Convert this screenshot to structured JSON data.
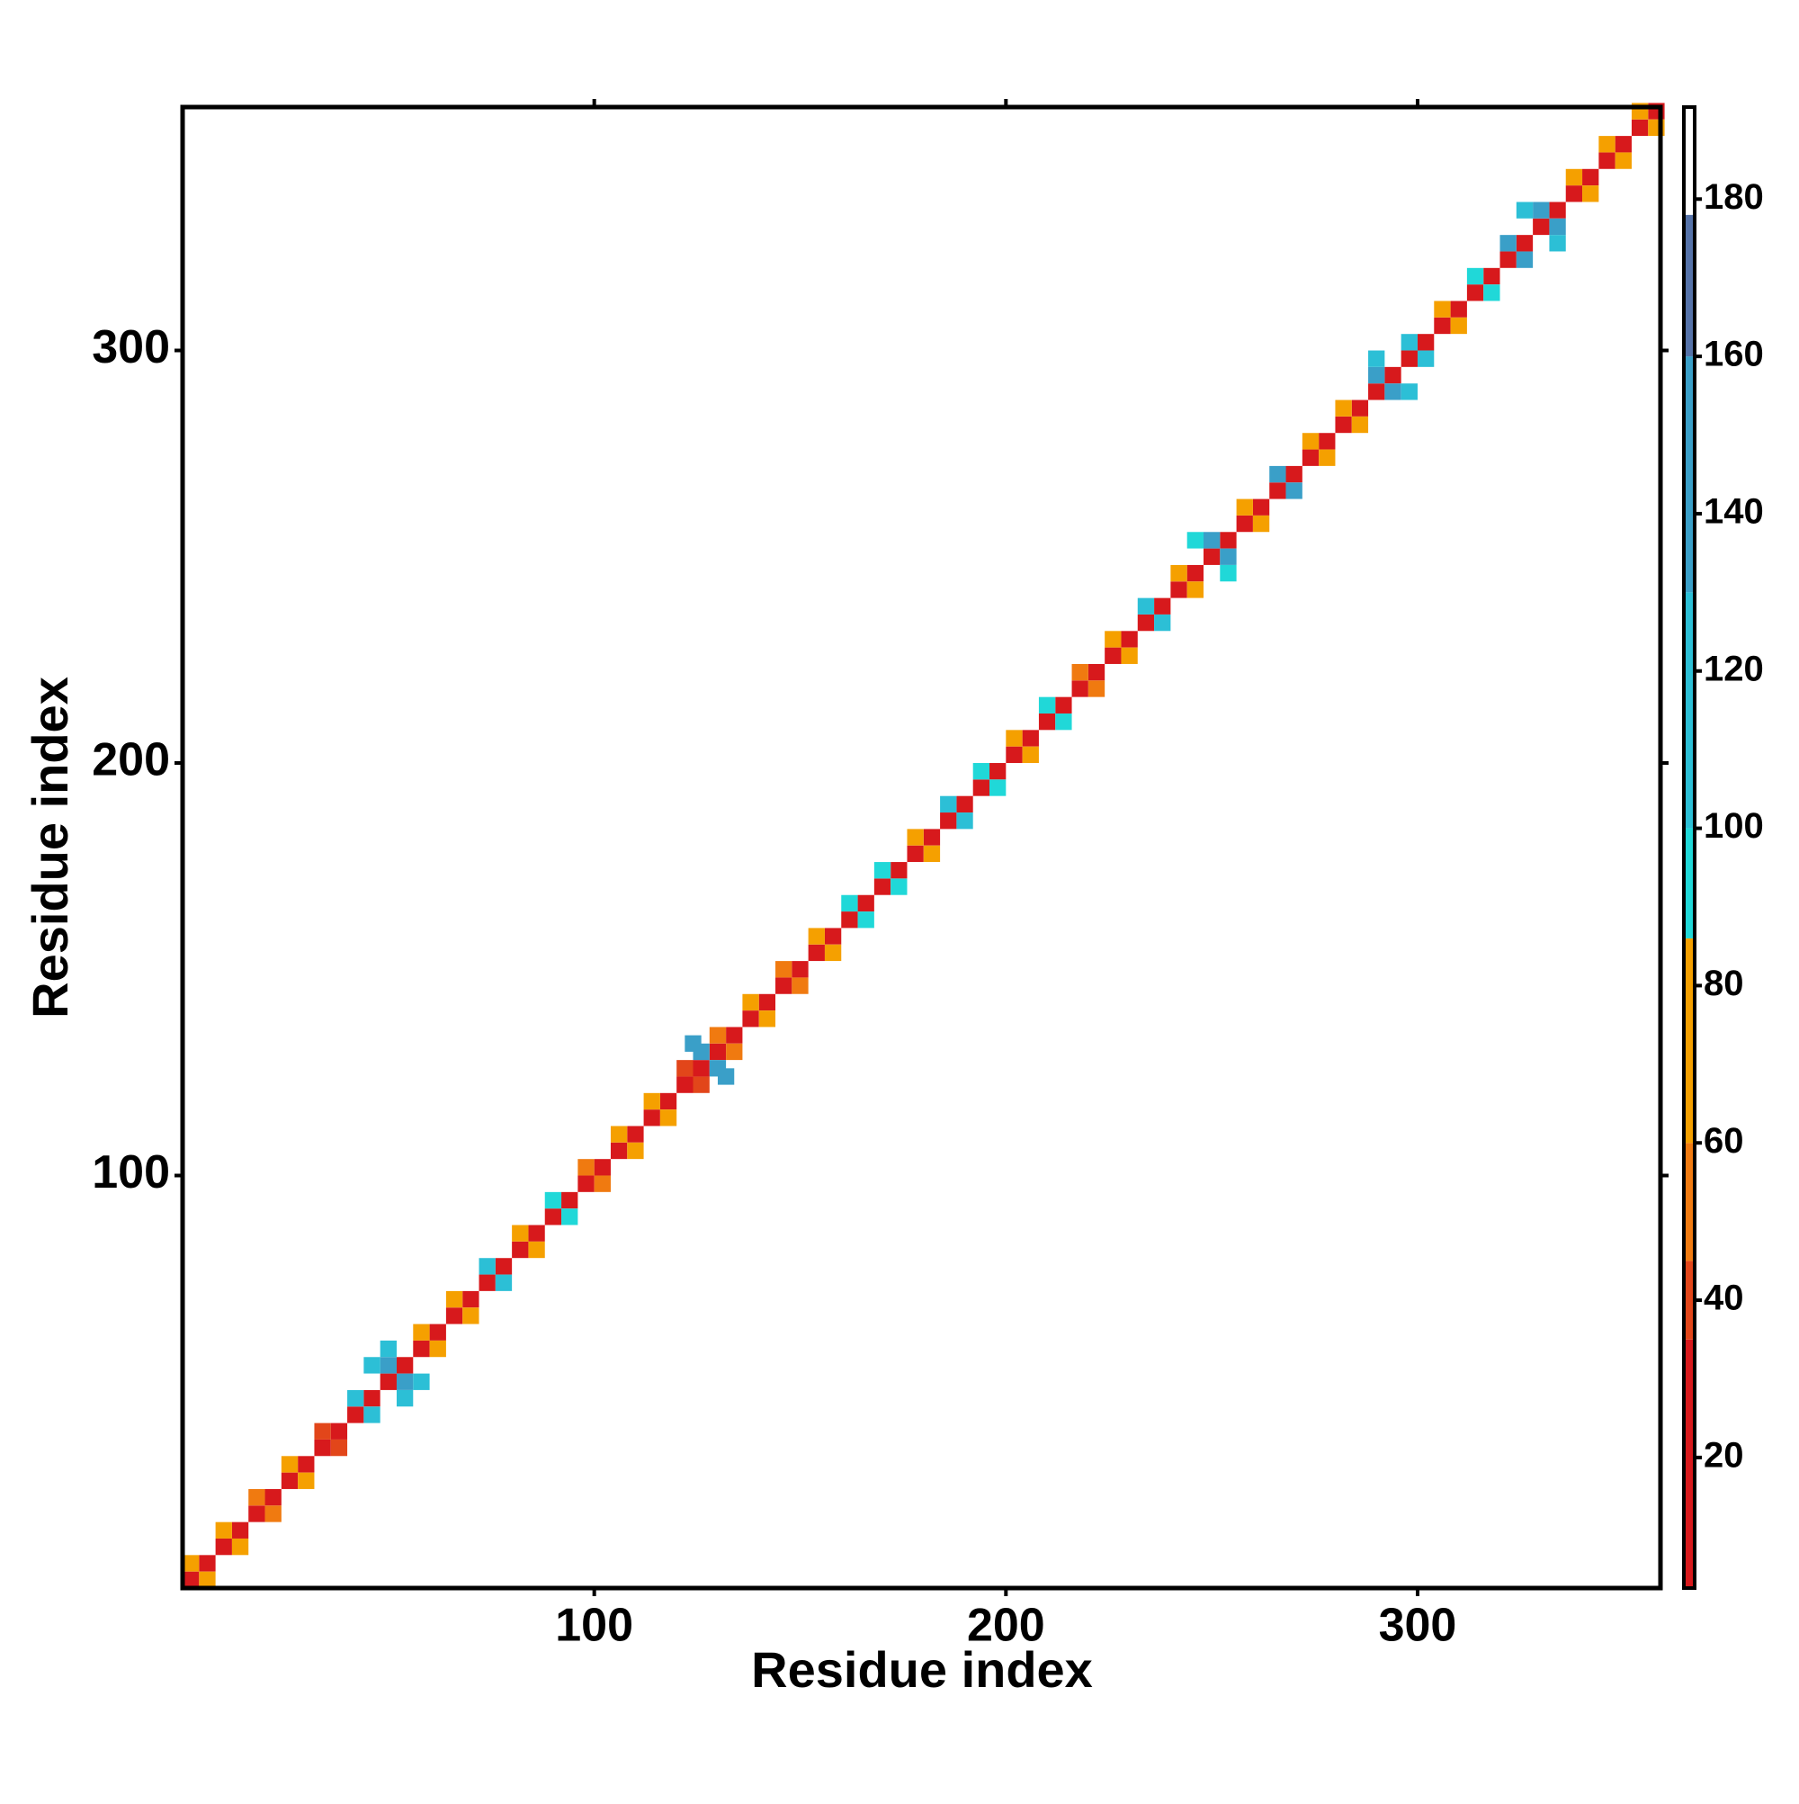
{
  "chart_data": {
    "type": "heatmap",
    "xlabel": "Residue index",
    "ylabel": "Residue index",
    "xlim": [
      0,
      359
    ],
    "ylim": [
      0,
      359
    ],
    "xticks": [
      100,
      200,
      300
    ],
    "yticks": [
      100,
      200,
      300
    ],
    "clim": [
      3.4,
      191.7
    ],
    "cticks": [
      20,
      40,
      60,
      80,
      100,
      120,
      140,
      160,
      180
    ],
    "color_bins": [
      3.4,
      35,
      45,
      60,
      86,
      100,
      130,
      160,
      178,
      191.7
    ],
    "colors": [
      "#d7191c",
      "#e2461a",
      "#f07a10",
      "#f5a000",
      "#20d8d8",
      "#2cbfd6",
      "#3a9fc8",
      "#5572a8",
      "#ffffff"
    ],
    "cells": {
      "x": [
        2,
        6,
        10,
        14,
        18,
        22,
        26,
        30,
        34,
        38,
        42,
        46,
        50,
        54,
        58,
        62,
        66,
        70,
        74,
        78,
        82,
        86,
        90,
        94,
        98,
        102,
        106,
        110,
        114,
        118,
        122,
        126,
        130,
        134,
        138,
        142,
        146,
        150,
        154,
        158,
        162,
        166,
        170,
        174,
        178,
        182,
        186,
        190,
        194,
        198,
        202,
        206,
        210,
        214,
        218,
        222,
        226,
        230,
        234,
        238,
        242,
        246,
        250,
        254,
        258,
        262,
        266,
        270,
        274,
        278,
        282,
        286,
        290,
        294,
        298,
        302,
        306,
        310,
        314,
        318,
        322,
        326,
        330,
        334,
        338,
        342,
        346,
        350,
        354,
        358,
        2,
        6,
        10,
        14,
        18,
        22,
        26,
        30,
        34,
        38,
        42,
        46,
        50,
        54,
        58,
        62,
        66,
        70,
        74,
        78,
        82,
        86,
        90,
        94,
        98,
        102,
        106,
        110,
        114,
        118,
        122,
        126,
        130,
        134,
        138,
        142,
        146,
        150,
        154,
        158,
        162,
        166,
        170,
        174,
        178,
        182,
        186,
        190,
        194,
        198,
        202,
        206,
        210,
        214,
        218,
        222,
        226,
        230,
        234,
        238,
        242,
        246,
        250,
        254,
        258,
        262,
        266,
        270,
        274,
        278,
        282,
        286,
        290,
        294,
        298,
        302,
        306,
        310,
        314,
        318,
        322,
        326,
        330,
        334,
        338,
        342,
        346,
        350,
        354,
        358,
        46,
        54,
        50,
        58,
        246,
        254,
        290,
        298,
        326,
        334,
        124,
        132,
        126,
        130
      ],
      "y": [
        2,
        6,
        10,
        14,
        18,
        22,
        26,
        30,
        34,
        38,
        42,
        46,
        50,
        54,
        58,
        62,
        66,
        70,
        74,
        78,
        82,
        86,
        90,
        94,
        98,
        102,
        106,
        110,
        114,
        118,
        122,
        126,
        130,
        134,
        138,
        142,
        146,
        150,
        154,
        158,
        162,
        166,
        170,
        174,
        178,
        182,
        186,
        190,
        194,
        198,
        202,
        206,
        210,
        214,
        218,
        222,
        226,
        230,
        234,
        238,
        242,
        246,
        250,
        254,
        258,
        262,
        266,
        270,
        274,
        278,
        282,
        286,
        290,
        294,
        298,
        302,
        306,
        310,
        314,
        318,
        322,
        326,
        330,
        334,
        338,
        342,
        346,
        350,
        354,
        358,
        6,
        2,
        14,
        10,
        22,
        18,
        30,
        26,
        38,
        34,
        46,
        42,
        54,
        50,
        62,
        58,
        70,
        66,
        78,
        74,
        86,
        82,
        94,
        90,
        102,
        98,
        110,
        106,
        118,
        114,
        126,
        122,
        134,
        130,
        142,
        138,
        150,
        146,
        158,
        154,
        166,
        162,
        174,
        170,
        182,
        178,
        190,
        186,
        198,
        194,
        206,
        202,
        214,
        210,
        222,
        218,
        230,
        226,
        238,
        234,
        246,
        242,
        254,
        250,
        262,
        258,
        270,
        266,
        278,
        274,
        286,
        282,
        294,
        290,
        302,
        298,
        310,
        306,
        318,
        314,
        326,
        322,
        334,
        330,
        342,
        338,
        350,
        346,
        358,
        354,
        54,
        46,
        58,
        50,
        254,
        246,
        298,
        290,
        334,
        326,
        132,
        124,
        130,
        126
      ],
      "values": [
        10,
        6,
        14,
        22,
        8,
        30,
        12,
        18,
        9,
        25,
        15,
        11,
        20,
        7,
        28,
        13,
        17,
        24,
        9,
        16,
        12,
        26,
        8,
        19,
        14,
        31,
        10,
        22,
        6,
        18,
        27,
        13,
        9,
        21,
        15,
        33,
        11,
        16,
        24,
        8,
        20,
        12,
        29,
        14,
        7,
        23,
        17,
        10,
        26,
        13,
        9,
        19,
        30,
        12,
        16,
        8,
        25,
        14,
        21,
        11,
        18,
        34,
        9,
        15,
        27,
        12,
        20,
        7,
        23,
        16,
        13,
        28,
        10,
        19,
        24,
        8,
        17,
        32,
        11,
        14,
        22,
        9,
        26,
        15,
        12,
        30,
        18,
        10,
        21,
        16,
        65,
        65,
        72,
        72,
        58,
        58,
        75,
        75,
        45,
        45,
        105,
        105,
        140,
        140,
        70,
        70,
        62,
        62,
        110,
        110,
        68,
        68,
        95,
        95,
        50,
        50,
        66,
        66,
        74,
        74,
        40,
        40,
        60,
        60,
        70,
        70,
        55,
        55,
        78,
        78,
        98,
        98,
        92,
        92,
        72,
        72,
        120,
        120,
        95,
        95,
        64,
        64,
        88,
        88,
        58,
        58,
        66,
        66,
        102,
        102,
        75,
        75,
        135,
        135,
        80,
        80,
        145,
        145,
        70,
        70,
        62,
        62,
        140,
        140,
        110,
        110,
        78,
        78,
        96,
        96,
        138,
        138,
        150,
        150,
        72,
        72,
        65,
        65,
        80,
        80,
        120,
        120,
        110,
        110,
        100,
        100,
        130,
        130,
        125,
        125,
        135,
        135,
        135,
        135
      ]
    }
  }
}
